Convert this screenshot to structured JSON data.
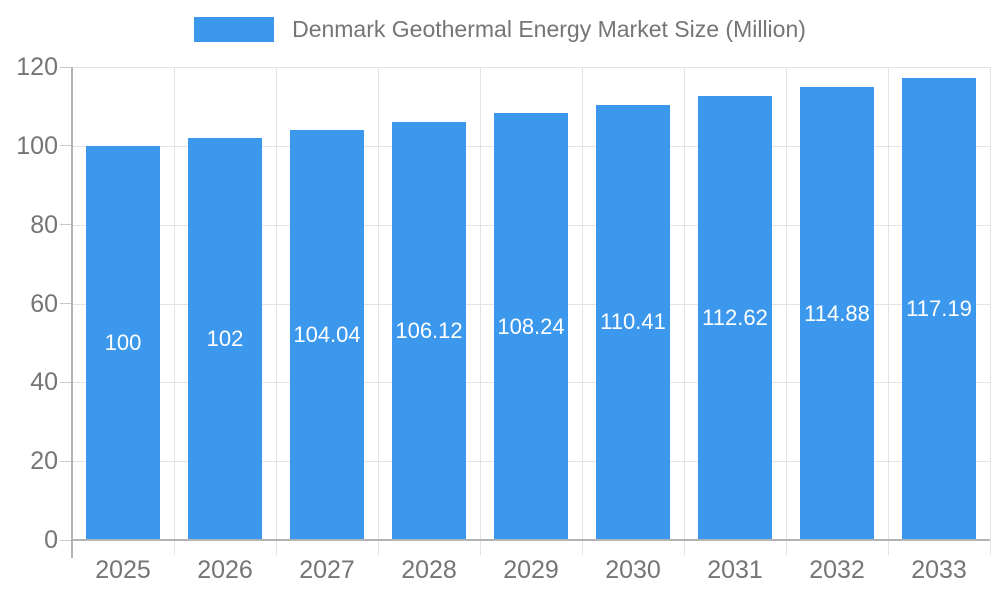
{
  "legend": {
    "swatch_color": "#3b98ec",
    "label": "Denmark Geothermal Energy Market Size (Million)"
  },
  "colors": {
    "bar": "#3b98ec",
    "grid": "#e3e3e3",
    "axis": "#b3b3b3",
    "tick": "#c9c9c9",
    "text": "#757575",
    "value_label": "#ffffff"
  },
  "chart_data": {
    "type": "bar",
    "title": "Denmark Geothermal Energy Market Size (Million)",
    "categories": [
      "2025",
      "2026",
      "2027",
      "2028",
      "2029",
      "2030",
      "2031",
      "2032",
      "2033"
    ],
    "values": [
      100,
      102,
      104.04,
      106.12,
      108.24,
      110.41,
      112.62,
      114.88,
      117.19
    ],
    "value_labels": [
      "100",
      "102",
      "104.04",
      "106.12",
      "108.24",
      "110.41",
      "112.62",
      "114.88",
      "117.19"
    ],
    "xlabel": "",
    "ylabel": "",
    "ylim": [
      0,
      120
    ],
    "yticks": [
      0,
      20,
      40,
      60,
      80,
      100,
      120
    ],
    "grid": true,
    "legend_position": "top",
    "value_labels_inside_bars": true
  }
}
